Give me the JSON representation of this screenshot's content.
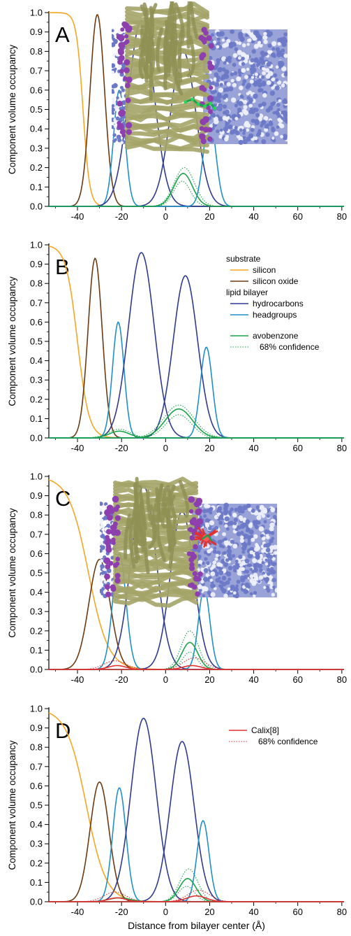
{
  "figure": {
    "x_axis_label": "Distance from bilayer center (Å)",
    "colors": {
      "silicon": "#f6a623",
      "silicon_oxide": "#6b3a12",
      "hydrocarbons": "#2f3a8f",
      "headgroups": "#1f8fc9",
      "avobenzone": "#1aa34a",
      "calix": "#e23030",
      "lipid_tails": "#a4a468",
      "lipid_heads": "#8e3fae",
      "water": "#6b79c7"
    }
  },
  "chart_data": [
    {
      "panel_label": "A",
      "type": "line",
      "ylabel": "Component volume occupancy",
      "xlabel": "",
      "xlim": [
        -53,
        81
      ],
      "ylim": [
        0,
        1.0
      ],
      "x_ticks": [
        "-40",
        "-20",
        "0",
        "20",
        "40",
        "60",
        "80"
      ],
      "y_ticks": [
        "0.0",
        "0.1",
        "0.2",
        "0.3",
        "0.4",
        "0.5",
        "0.6",
        "0.7",
        "0.8",
        "0.9",
        "1.0"
      ],
      "legend": [],
      "has_inset_render": true,
      "inset_highlight": "avobenzone",
      "series": [
        {
          "component": "silicon",
          "profile": "step",
          "center": -37.5,
          "width": 1.5,
          "amplitude": 1.0
        },
        {
          "component": "silicon_oxide",
          "center": -31,
          "width": 3.3,
          "amplitude": 0.99
        },
        {
          "component": "headgroups",
          "center": -21,
          "width": 2.6,
          "amplitude": 0.6
        },
        {
          "component": "hydrocarbons",
          "center": -11,
          "width": 5.8,
          "amplitude": 0.96
        },
        {
          "component": "hydrocarbons",
          "center": 8,
          "width": 5.7,
          "amplitude": 0.8
        },
        {
          "component": "headgroups",
          "center": 20,
          "width": 2.8,
          "amplitude": 0.46
        },
        {
          "component": "avobenzone",
          "center": 8,
          "width": 4.2,
          "amplitude": 0.17
        },
        {
          "component": "avobenzone",
          "style": "dotted",
          "center": 8.5,
          "width": 4.6,
          "amplitude": 0.2
        },
        {
          "component": "avobenzone",
          "style": "dotted",
          "center": 7.5,
          "width": 3.8,
          "amplitude": 0.13
        }
      ]
    },
    {
      "panel_label": "B",
      "type": "line",
      "ylabel": "Component volume occupancy",
      "xlabel": "",
      "xlim": [
        -53,
        81
      ],
      "ylim": [
        0,
        1.0
      ],
      "x_ticks": [
        "-40",
        "-20",
        "0",
        "20",
        "40",
        "60",
        "80"
      ],
      "y_ticks": [
        "0.0",
        "0.1",
        "0.2",
        "0.3",
        "0.4",
        "0.5",
        "0.6",
        "0.7",
        "0.8",
        "0.9",
        "1.0"
      ],
      "legend": [
        {
          "kind": "header",
          "label": "substrate"
        },
        {
          "kind": "solid",
          "component": "silicon",
          "label": "silicon"
        },
        {
          "kind": "solid",
          "component": "silicon_oxide",
          "label": "silicon oxide"
        },
        {
          "kind": "header",
          "label": "lipid bilayer"
        },
        {
          "kind": "solid",
          "component": "hydrocarbons",
          "label": "hydrocarbons"
        },
        {
          "kind": "solid",
          "component": "headgroups",
          "label": "headgroups"
        },
        {
          "kind": "solid",
          "component": "avobenzone",
          "label": "avobenzone"
        },
        {
          "kind": "dotted",
          "component": "avobenzone",
          "label": "68% confidence"
        }
      ],
      "has_inset_render": false,
      "series": [
        {
          "component": "silicon",
          "profile": "step",
          "center": -40,
          "width": 2.6,
          "amplitude": 1.0
        },
        {
          "component": "silicon_oxide",
          "center": -32,
          "width": 3.2,
          "amplitude": 0.93
        },
        {
          "component": "headgroups",
          "center": -21.5,
          "width": 2.6,
          "amplitude": 0.6
        },
        {
          "component": "hydrocarbons",
          "center": -11,
          "width": 5.8,
          "amplitude": 0.96
        },
        {
          "component": "hydrocarbons",
          "center": 9,
          "width": 5.5,
          "amplitude": 0.84
        },
        {
          "component": "headgroups",
          "center": 18.5,
          "width": 2.7,
          "amplitude": 0.47
        },
        {
          "component": "avobenzone",
          "center": 6,
          "width": 6.2,
          "amplitude": 0.15
        },
        {
          "component": "avobenzone",
          "center": -21,
          "width": 4.5,
          "amplitude": 0.035
        },
        {
          "component": "avobenzone",
          "style": "dotted",
          "center": 6,
          "width": 6.8,
          "amplitude": 0.17
        },
        {
          "component": "avobenzone",
          "style": "dotted",
          "center": 6,
          "width": 5.8,
          "amplitude": 0.12
        },
        {
          "component": "avobenzone",
          "style": "dotted",
          "center": -21,
          "width": 5.0,
          "amplitude": 0.045
        }
      ]
    },
    {
      "panel_label": "C",
      "type": "line",
      "ylabel": "Component volume occupancy",
      "xlabel": "",
      "xlim": [
        -53,
        81
      ],
      "ylim": [
        0,
        1.0
      ],
      "x_ticks": [
        "-40",
        "-20",
        "0",
        "20",
        "40",
        "60",
        "80"
      ],
      "y_ticks": [
        "0.0",
        "0.1",
        "0.2",
        "0.3",
        "0.4",
        "0.5",
        "0.6",
        "0.7",
        "0.8",
        "0.9",
        "1.0"
      ],
      "legend": [],
      "has_inset_render": true,
      "inset_highlight": "calix",
      "series": [
        {
          "component": "silicon",
          "profile": "step",
          "center": -35,
          "width": 4.5,
          "amplitude": 1.0
        },
        {
          "component": "silicon_oxide",
          "center": -30,
          "width": 4.8,
          "amplitude": 0.57
        },
        {
          "component": "headgroups",
          "center": -21,
          "width": 3.0,
          "amplitude": 0.6
        },
        {
          "component": "hydrocarbons",
          "center": -10,
          "width": 5.7,
          "amplitude": 0.95
        },
        {
          "component": "hydrocarbons",
          "center": 7.5,
          "width": 5.3,
          "amplitude": 0.82
        },
        {
          "component": "headgroups",
          "center": 17.5,
          "width": 2.6,
          "amplitude": 0.42
        },
        {
          "component": "avobenzone",
          "center": 11,
          "width": 3.6,
          "amplitude": 0.14
        },
        {
          "component": "avobenzone",
          "style": "dotted",
          "center": 11,
          "width": 3.9,
          "amplitude": 0.2
        },
        {
          "component": "avobenzone",
          "style": "dotted",
          "center": 11,
          "width": 3.3,
          "amplitude": 0.09
        },
        {
          "component": "calix",
          "center": 12,
          "width": 4.2,
          "amplitude": 0.02
        },
        {
          "component": "calix",
          "center": -22,
          "width": 4.0,
          "amplitude": 0.02
        },
        {
          "component": "calix",
          "style": "dotted",
          "center": 13,
          "width": 5.0,
          "amplitude": 0.06
        },
        {
          "component": "calix",
          "style": "dotted",
          "center": -23,
          "width": 5.0,
          "amplitude": 0.045
        }
      ]
    },
    {
      "panel_label": "D",
      "type": "line",
      "ylabel": "Component volume occupancy",
      "xlabel": "Distance from bilayer center (Å)",
      "xlim": [
        -53,
        81
      ],
      "ylim": [
        0,
        1.0
      ],
      "x_ticks": [
        "-40",
        "-20",
        "0",
        "20",
        "40",
        "60",
        "80"
      ],
      "y_ticks": [
        "0.0",
        "0.1",
        "0.2",
        "0.3",
        "0.4",
        "0.5",
        "0.6",
        "0.7",
        "0.8",
        "0.9",
        "1.0"
      ],
      "legend": [
        {
          "kind": "solid",
          "component": "calix",
          "label": "Calix[8]"
        },
        {
          "kind": "dotted",
          "component": "calix",
          "label": "68% confidence"
        }
      ],
      "has_inset_render": false,
      "series": [
        {
          "component": "silicon",
          "profile": "step",
          "center": -36,
          "width": 4.5,
          "amplitude": 1.0
        },
        {
          "component": "silicon_oxide",
          "center": -30,
          "width": 4.3,
          "amplitude": 0.62
        },
        {
          "component": "headgroups",
          "center": -21,
          "width": 3.0,
          "amplitude": 0.59
        },
        {
          "component": "hydrocarbons",
          "center": -10,
          "width": 5.7,
          "amplitude": 0.95
        },
        {
          "component": "hydrocarbons",
          "center": 7.5,
          "width": 5.4,
          "amplitude": 0.83
        },
        {
          "component": "headgroups",
          "center": 17,
          "width": 2.7,
          "amplitude": 0.42
        },
        {
          "component": "avobenzone",
          "center": 10,
          "width": 3.8,
          "amplitude": 0.12
        },
        {
          "component": "avobenzone",
          "center": -21,
          "width": 4.8,
          "amplitude": 0.02
        },
        {
          "component": "avobenzone",
          "style": "dotted",
          "center": 10.5,
          "width": 4.1,
          "amplitude": 0.17
        },
        {
          "component": "avobenzone",
          "style": "dotted",
          "center": 9.5,
          "width": 3.6,
          "amplitude": 0.08
        },
        {
          "component": "calix",
          "center": 14,
          "width": 4.5,
          "amplitude": 0.03
        },
        {
          "component": "calix",
          "center": -22,
          "width": 4.0,
          "amplitude": 0.02
        },
        {
          "component": "calix",
          "style": "dotted",
          "center": 15,
          "width": 5.0,
          "amplitude": 0.06
        },
        {
          "component": "calix",
          "style": "dotted",
          "center": -23,
          "width": 5.0,
          "amplitude": 0.05
        }
      ]
    }
  ]
}
